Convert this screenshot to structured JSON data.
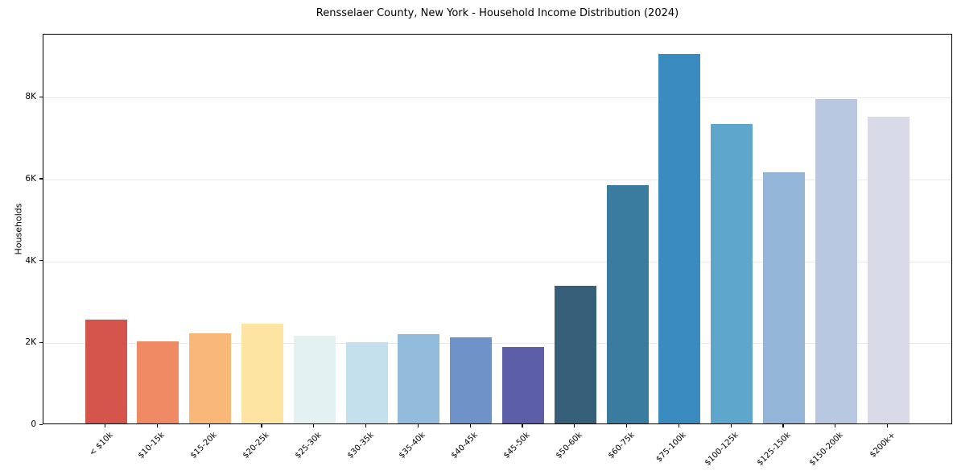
{
  "chart_data": {
    "type": "bar",
    "title": "Rensselaer County, New York - Household Income Distribution (2024)",
    "xlabel": "",
    "ylabel": "Households",
    "categories": [
      "< $10k",
      "$10-15k",
      "$15-20k",
      "$20-25k",
      "$25-30k",
      "$30-35k",
      "$35-40k",
      "$40-45k",
      "$45-50k",
      "$50-60k",
      "$60-75k",
      "$75-100k",
      "$100-125k",
      "$125-150k",
      "$150-200k",
      "$200k+"
    ],
    "values": [
      2540,
      2000,
      2210,
      2430,
      2140,
      1990,
      2180,
      2100,
      1870,
      3370,
      5830,
      9030,
      7320,
      6130,
      7930,
      7500
    ],
    "bar_colors": [
      "#d5554d",
      "#f08a64",
      "#fab878",
      "#fde4a2",
      "#e4f1f3",
      "#c3e0ec",
      "#93bcdc",
      "#6f93c8",
      "#5c5ea7",
      "#36607a",
      "#3a7ba0",
      "#3a8cc0",
      "#5ea6cb",
      "#92b5d8",
      "#b8c8e0",
      "#d9dae8"
    ],
    "ylim": [
      0,
      9540
    ],
    "yticks": [
      {
        "value": 0,
        "label": "0"
      },
      {
        "value": 2000,
        "label": "2K"
      },
      {
        "value": 4000,
        "label": "4K"
      },
      {
        "value": 6000,
        "label": "6K"
      },
      {
        "value": 8000,
        "label": "8K"
      }
    ],
    "grid": "horizontal-only",
    "legend": "none"
  }
}
